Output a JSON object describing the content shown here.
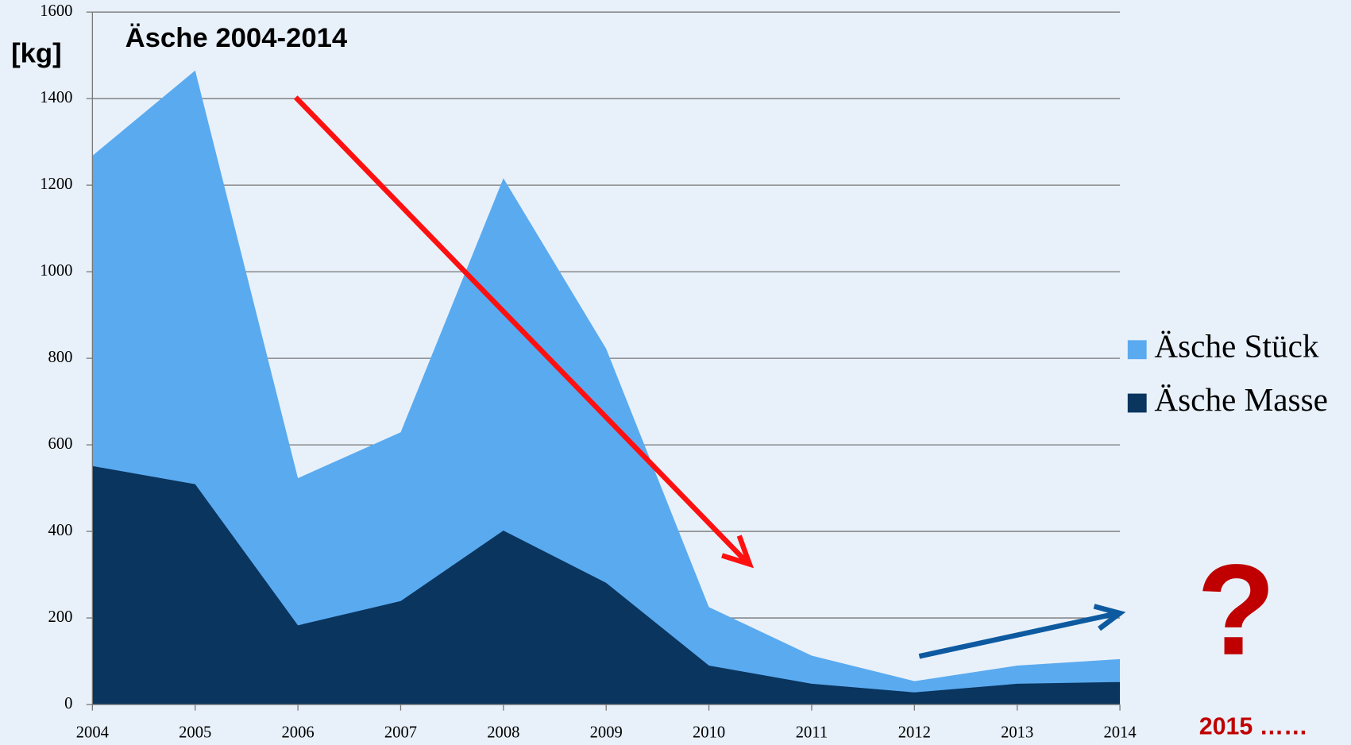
{
  "chart_data": {
    "type": "area",
    "title": "Äsche 2004-2014",
    "y_label": "[kg]",
    "annotations": [
      "?",
      "2015 ……"
    ],
    "x": [
      2004,
      2005,
      2006,
      2007,
      2008,
      2009,
      2010,
      2011,
      2012,
      2013,
      2014
    ],
    "xlim": [
      2004,
      2014
    ],
    "xticks": [
      2004,
      2005,
      2006,
      2007,
      2008,
      2009,
      2010,
      2011,
      2012,
      2013,
      2014
    ],
    "ylim": [
      0,
      1600
    ],
    "yticks": [
      0,
      200,
      400,
      600,
      800,
      1000,
      1200,
      1400,
      1600
    ],
    "grid": true,
    "legend": "right",
    "series": [
      {
        "name": "Äsche Stück",
        "color": "#5aaaf0",
        "values": [
          1268,
          1465,
          523,
          629,
          1216,
          822,
          225,
          113,
          54,
          90,
          105
        ]
      },
      {
        "name": "Äsche Masse",
        "color": "#0a355e",
        "values": [
          551,
          509,
          183,
          239,
          402,
          281,
          90,
          48,
          28,
          48,
          52
        ]
      }
    ]
  }
}
